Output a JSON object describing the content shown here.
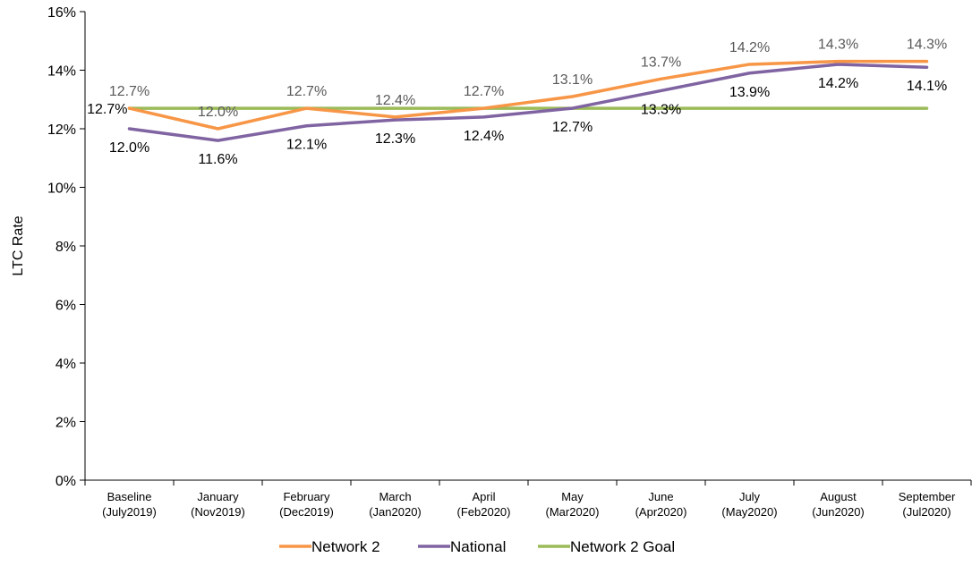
{
  "chart_data": {
    "type": "line",
    "ylabel": "LTC Rate",
    "xlabel": "",
    "ylim": [
      0,
      16
    ],
    "y_ticks": [
      "0%",
      "2%",
      "4%",
      "6%",
      "8%",
      "10%",
      "12%",
      "14%",
      "16%"
    ],
    "grid": false,
    "legend_position": "bottom",
    "categories": [
      [
        "Baseline",
        "(July2019)"
      ],
      [
        "January",
        "(Nov2019)"
      ],
      [
        "February",
        "(Dec2019)"
      ],
      [
        "March",
        "(Jan2020)"
      ],
      [
        "April",
        "(Feb2020)"
      ],
      [
        "May",
        "(Mar2020)"
      ],
      [
        "June",
        "(Apr2020)"
      ],
      [
        "July",
        "(May2020)"
      ],
      [
        "August",
        "(Jun2020)"
      ],
      [
        "September",
        "(Jul2020)"
      ]
    ],
    "series": [
      {
        "name": "Network 2",
        "color": "#F79646",
        "values": [
          12.7,
          12.0,
          12.7,
          12.4,
          12.7,
          13.1,
          13.7,
          14.2,
          14.3,
          14.3
        ],
        "labels": [
          "12.7%",
          "12.0%",
          "12.7%",
          "12.4%",
          "12.7%",
          "13.1%",
          "13.7%",
          "14.2%",
          "14.3%",
          "14.3%"
        ]
      },
      {
        "name": "National",
        "color": "#8064A2",
        "values": [
          12.0,
          11.6,
          12.1,
          12.3,
          12.4,
          12.7,
          13.3,
          13.9,
          14.2,
          14.1
        ],
        "labels": [
          "12.0%",
          "11.6%",
          "12.1%",
          "12.3%",
          "12.4%",
          "12.7%",
          "13.3%",
          "13.9%",
          "14.2%",
          "14.1%"
        ]
      },
      {
        "name": "Network 2 Goal",
        "color": "#9BBB59",
        "values": [
          12.7,
          12.7,
          12.7,
          12.7,
          12.7,
          12.7,
          12.7,
          12.7,
          12.7,
          12.7
        ],
        "labels": [
          "12.7%"
        ]
      }
    ]
  }
}
